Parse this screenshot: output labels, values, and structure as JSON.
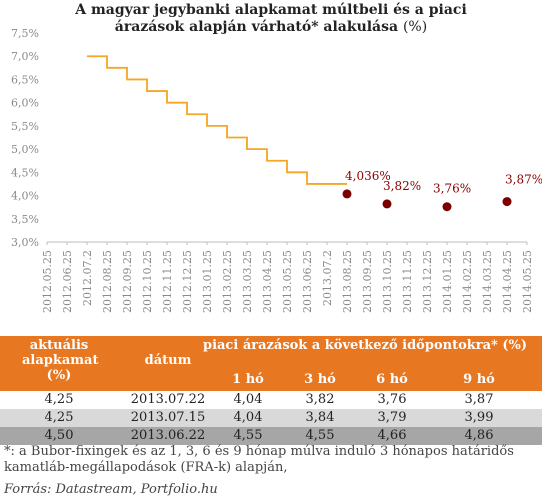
{
  "chart_data": {
    "type": "line",
    "title_line1": "A magyar jegybanki alapkamat múltbeli és a piaci",
    "title_line2": "árazások alapján várható* alakulása",
    "title_unit": "(%)",
    "yticks": [
      "3,0%",
      "3,5%",
      "4,0%",
      "4,5%",
      "5,0%",
      "5,5%",
      "6,0%",
      "6,5%",
      "7,0%",
      "7,5%"
    ],
    "ylim": [
      3.0,
      7.5
    ],
    "xticks": [
      "2012.05.25",
      "2012.06.25",
      "2012.07.2",
      "2012.08.25",
      "2012.09.25",
      "2012.10.25",
      "2012.11.25",
      "2012.12.25",
      "2013.01.25",
      "2013.02.25",
      "2013.03.25",
      "2013.04.25",
      "2013.05.25",
      "2013.06.25",
      "2013.07.2",
      "2013.08.25",
      "2013.09.25",
      "2013.10.25",
      "2013.11.25",
      "2013.12.25",
      "2014.01.25",
      "2014.02.25",
      "2014.03.25",
      "2014.04.25",
      "2014.05.25"
    ],
    "series": [
      {
        "kind": "step",
        "color": "#f5a623",
        "points": [
          {
            "x": 2.0,
            "y": 7.0
          },
          {
            "x": 3.0,
            "y": 6.75
          },
          {
            "x": 4.0,
            "y": 6.5
          },
          {
            "x": 5.0,
            "y": 6.25
          },
          {
            "x": 6.0,
            "y": 6.0
          },
          {
            "x": 7.0,
            "y": 5.75
          },
          {
            "x": 8.0,
            "y": 5.5
          },
          {
            "x": 9.0,
            "y": 5.25
          },
          {
            "x": 10.0,
            "y": 5.0
          },
          {
            "x": 11.0,
            "y": 4.75
          },
          {
            "x": 12.0,
            "y": 4.5
          },
          {
            "x": 13.0,
            "y": 4.25
          },
          {
            "x": 14.0,
            "y": 4.25
          }
        ]
      },
      {
        "kind": "points",
        "color": "#7a0000",
        "points": [
          {
            "x": 15.0,
            "y": 4.036,
            "label": "4,036%"
          },
          {
            "x": 17.0,
            "y": 3.82,
            "label": "3,82%"
          },
          {
            "x": 20.0,
            "y": 3.76,
            "label": "3,76%"
          },
          {
            "x": 23.0,
            "y": 3.87,
            "label": "3,87%"
          }
        ]
      }
    ]
  },
  "table": {
    "header": {
      "col1": [
        "aktuális",
        "alapkamat",
        "(%)"
      ],
      "col2": "dátum",
      "group": "piaci árazások a következő időpontokra* (%)",
      "subcols": [
        "1 hó",
        "3 hó",
        "6 hó",
        "9 hó"
      ]
    },
    "rows": [
      [
        "4,25",
        "2013.07.22",
        "4,04",
        "3,82",
        "3,76",
        "3,87"
      ],
      [
        "4,25",
        "2013.07.15",
        "4,04",
        "3,84",
        "3,79",
        "3,99"
      ],
      [
        "4,50",
        "2013.06.22",
        "4,55",
        "4,55",
        "4,66",
        "4,86"
      ]
    ],
    "colors": {
      "header": "#e87722",
      "row_light": "#d9d9d9",
      "row_dark": "#a6a6a6"
    }
  },
  "footnote_line1": "*: a Bubor-fixingek és  az 1, 3, 6 és 9 hónap múlva induló 3 hónapos határidős",
  "footnote_line2": "kamatláb-megállapodások (FRA-k) alapján,",
  "source": "Forrás: Datastream, Portfolio.hu"
}
